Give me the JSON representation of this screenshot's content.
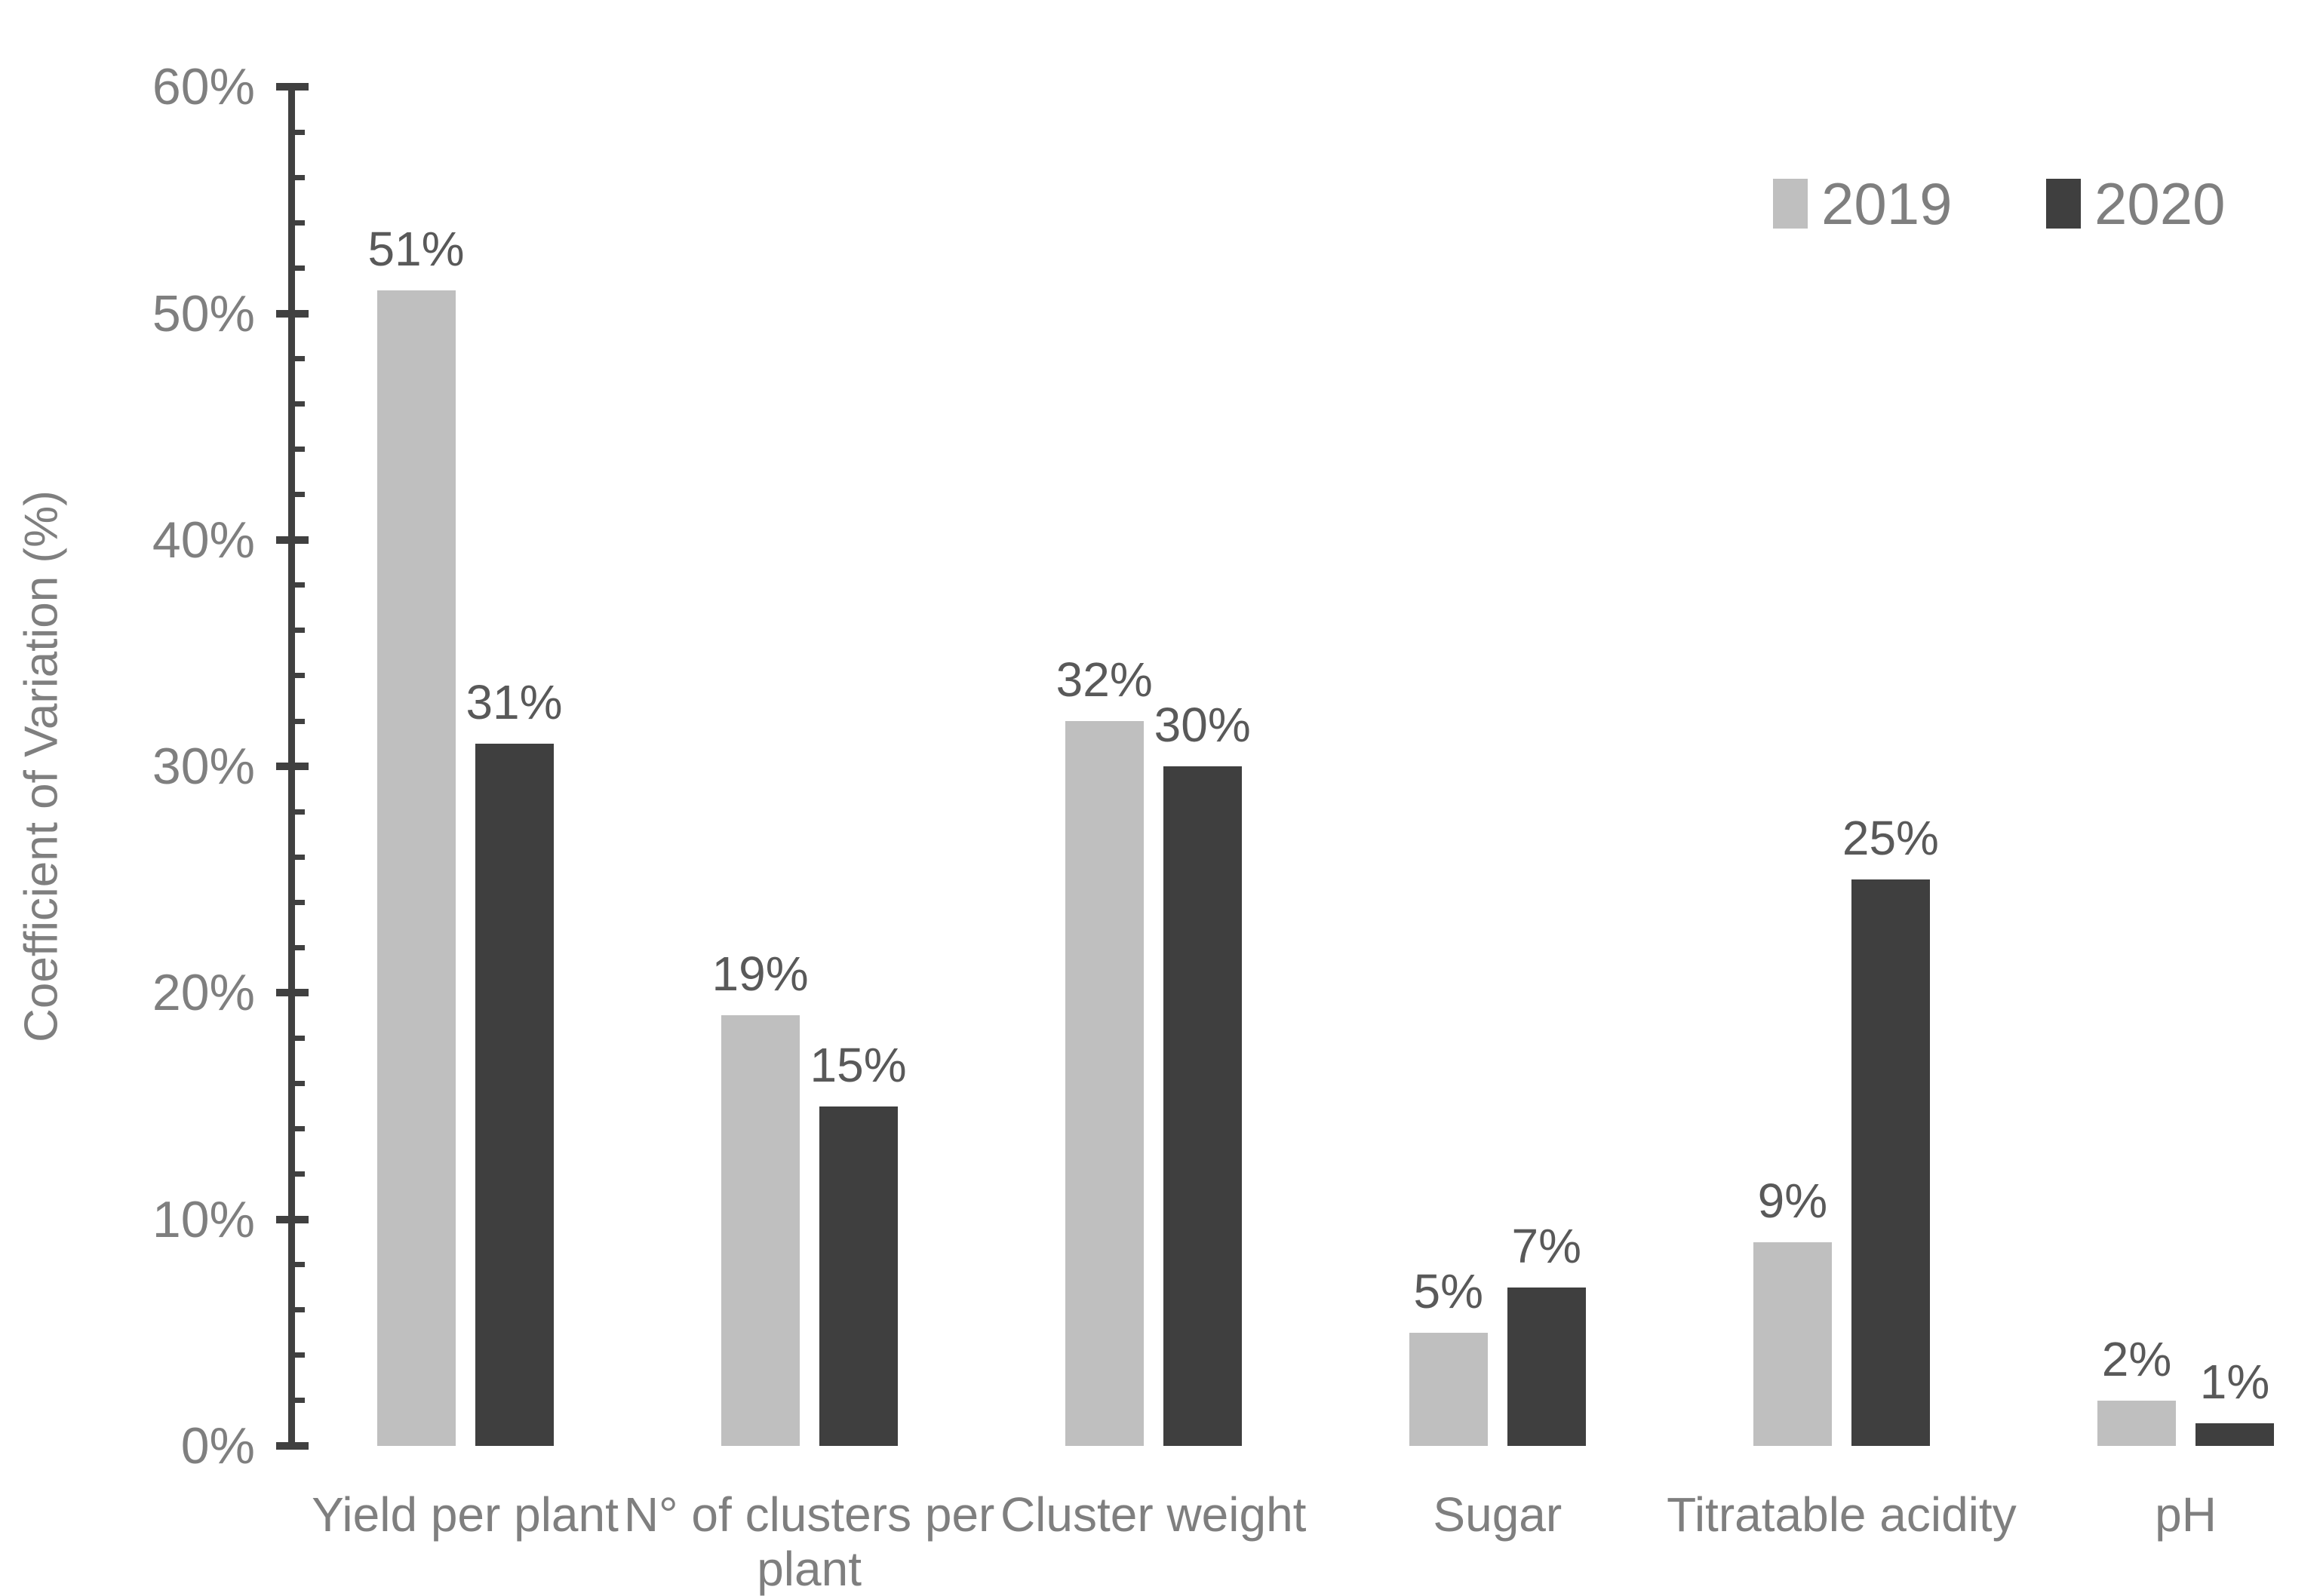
{
  "chart_data": {
    "type": "bar",
    "title": "",
    "xlabel": "",
    "ylabel": "Coefficient of Variation (%)",
    "ylim": [
      0,
      60
    ],
    "ytick_step": 10,
    "minor_tick_step": 2,
    "ytick_labels": [
      "0%",
      "10%",
      "20%",
      "30%",
      "40%",
      "50%",
      "60%"
    ],
    "grid": false,
    "legend_position": "top-right",
    "categories": [
      "Yield per plant",
      "N° of clusters per plant",
      "Cluster weight",
      "Sugar",
      "Titratable acidity",
      "pH"
    ],
    "series": [
      {
        "name": "2019",
        "color": "#BFBFBF",
        "values": [
          51,
          19,
          32,
          5,
          9,
          2
        ],
        "value_labels": [
          "51%",
          "19%",
          "32%",
          "5%",
          "9%",
          "2%"
        ]
      },
      {
        "name": "2020",
        "color": "#3F3F3F",
        "values": [
          31,
          15,
          30,
          7,
          25,
          1
        ],
        "value_labels": [
          "31%",
          "15%",
          "30%",
          "7%",
          "25%",
          "1%"
        ]
      }
    ],
    "colors": {
      "axis": "#404040",
      "tick_text": "#7F7F7F",
      "value_label_text": "#595959",
      "background": "#FFFFFF"
    }
  }
}
